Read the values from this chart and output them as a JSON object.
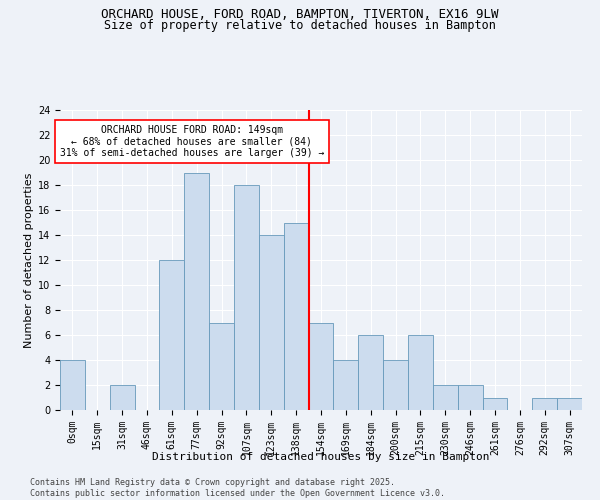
{
  "title": "ORCHARD HOUSE, FORD ROAD, BAMPTON, TIVERTON, EX16 9LW",
  "subtitle": "Size of property relative to detached houses in Bampton",
  "xlabel": "Distribution of detached houses by size in Bampton",
  "ylabel": "Number of detached properties",
  "categories": [
    "0sqm",
    "15sqm",
    "31sqm",
    "46sqm",
    "61sqm",
    "77sqm",
    "92sqm",
    "107sqm",
    "123sqm",
    "138sqm",
    "154sqm",
    "169sqm",
    "184sqm",
    "200sqm",
    "215sqm",
    "230sqm",
    "246sqm",
    "261sqm",
    "276sqm",
    "292sqm",
    "307sqm"
  ],
  "values": [
    4,
    0,
    2,
    0,
    12,
    19,
    7,
    18,
    14,
    15,
    7,
    4,
    6,
    4,
    6,
    2,
    2,
    1,
    0,
    1,
    1
  ],
  "bar_color": "#ccdcee",
  "bar_edge_color": "#6699bb",
  "bar_width": 1.0,
  "vline_x": 10,
  "vline_color": "red",
  "annotation_text": "ORCHARD HOUSE FORD ROAD: 149sqm\n← 68% of detached houses are smaller (84)\n31% of semi-detached houses are larger (39) →",
  "annotation_box_color": "white",
  "annotation_box_edge_color": "red",
  "ylim": [
    0,
    24
  ],
  "yticks": [
    0,
    2,
    4,
    6,
    8,
    10,
    12,
    14,
    16,
    18,
    20,
    22,
    24
  ],
  "footer": "Contains HM Land Registry data © Crown copyright and database right 2025.\nContains public sector information licensed under the Open Government Licence v3.0.",
  "background_color": "#eef2f8",
  "grid_color": "white",
  "title_fontsize": 9,
  "subtitle_fontsize": 8.5,
  "axis_label_fontsize": 8,
  "tick_fontsize": 7,
  "annotation_fontsize": 7,
  "footer_fontsize": 6
}
